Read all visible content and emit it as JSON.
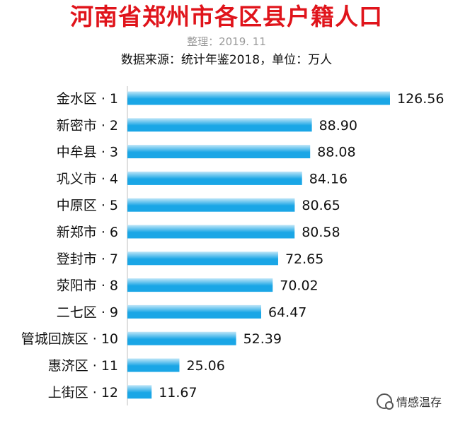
{
  "title": "河南省郑州市各区县户籍人口",
  "subtitle": "整理：2019. 11",
  "source": "数据来源：统计年鉴2018，单位：万人",
  "watermark": "情感温存",
  "colors": {
    "title": "#e0141b",
    "bar_light": "#bfe6f8",
    "bar_dark": "#1aa6e6"
  },
  "chart_data": {
    "type": "bar",
    "orientation": "horizontal",
    "categories": [
      "金水区 · 1",
      "新密市 · 2",
      "中牟县 · 3",
      "巩义市 · 4",
      "中原区 · 5",
      "新郑市 · 6",
      "登封市 · 7",
      "荥阳市 · 8",
      "二七区 · 9",
      "管城回族区 · 10",
      "惠济区 · 11",
      "上街区 · 12"
    ],
    "values": [
      126.56,
      88.9,
      88.08,
      84.16,
      80.65,
      80.58,
      72.65,
      70.02,
      64.47,
      52.39,
      25.06,
      11.67
    ],
    "value_labels": [
      "126.56",
      "88.90",
      "88.08",
      "84.16",
      "80.65",
      "80.58",
      "72.65",
      "70.02",
      "64.47",
      "52.39",
      "25.06",
      "11.67"
    ],
    "xlim": [
      0,
      126.56
    ],
    "grid": false,
    "legend": "none"
  }
}
